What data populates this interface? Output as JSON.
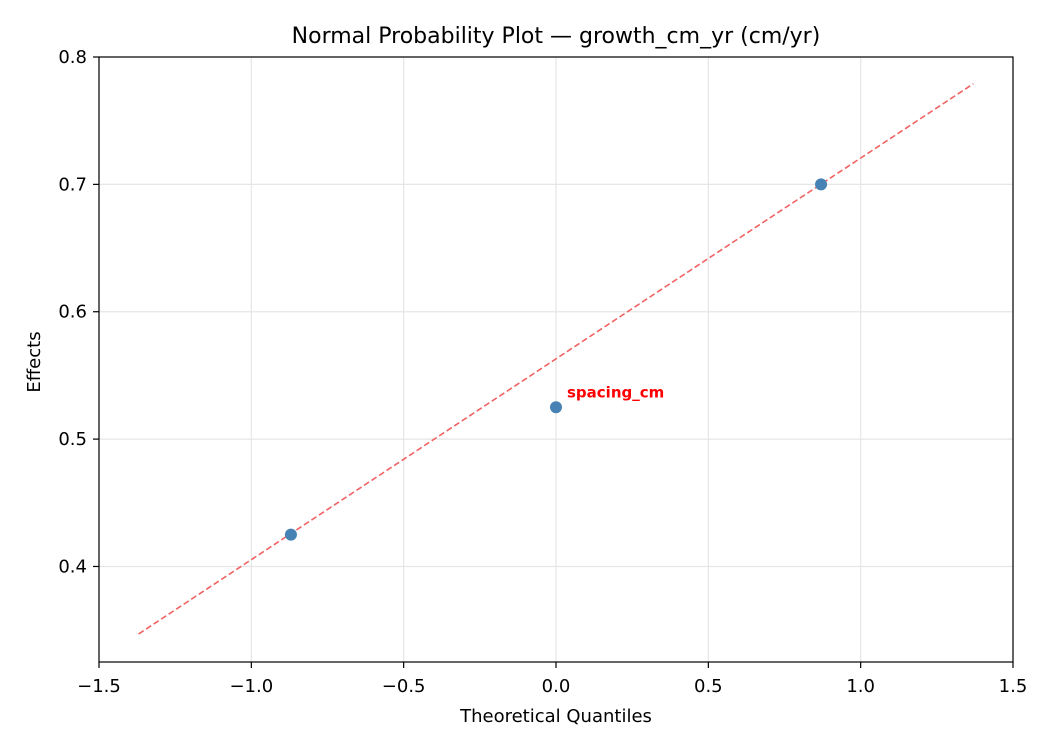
{
  "chart_data": {
    "type": "scatter",
    "title": "Normal Probability Plot — growth_cm_yr (cm/yr)",
    "xlabel": "Theoretical Quantiles",
    "ylabel": "Effects",
    "xlim": [
      -1.5,
      1.5
    ],
    "ylim": [
      0.325,
      0.8
    ],
    "x_ticks": [
      -1.5,
      -1.0,
      -0.5,
      0.0,
      0.5,
      1.0,
      1.5
    ],
    "x_tick_labels": [
      "−1.5",
      "−1.0",
      "−0.5",
      "0.0",
      "0.5",
      "1.0",
      "1.5"
    ],
    "y_ticks": [
      0.4,
      0.5,
      0.6,
      0.7,
      0.8
    ],
    "y_tick_labels": [
      "0.4",
      "0.5",
      "0.6",
      "0.7",
      "0.8"
    ],
    "grid": true,
    "series": [
      {
        "x": [
          -0.87,
          0.0,
          0.87
        ],
        "y": [
          0.425,
          0.525,
          0.7
        ],
        "color": "#4682b4"
      }
    ],
    "reference_line": {
      "x": [
        -1.37,
        1.37
      ],
      "y": [
        0.347,
        0.779
      ],
      "color": "#f16262",
      "style": "dashed"
    },
    "annotations": [
      {
        "text": "spacing_cm",
        "x": 0.0,
        "y": 0.525,
        "color": "#ff0000"
      }
    ]
  }
}
